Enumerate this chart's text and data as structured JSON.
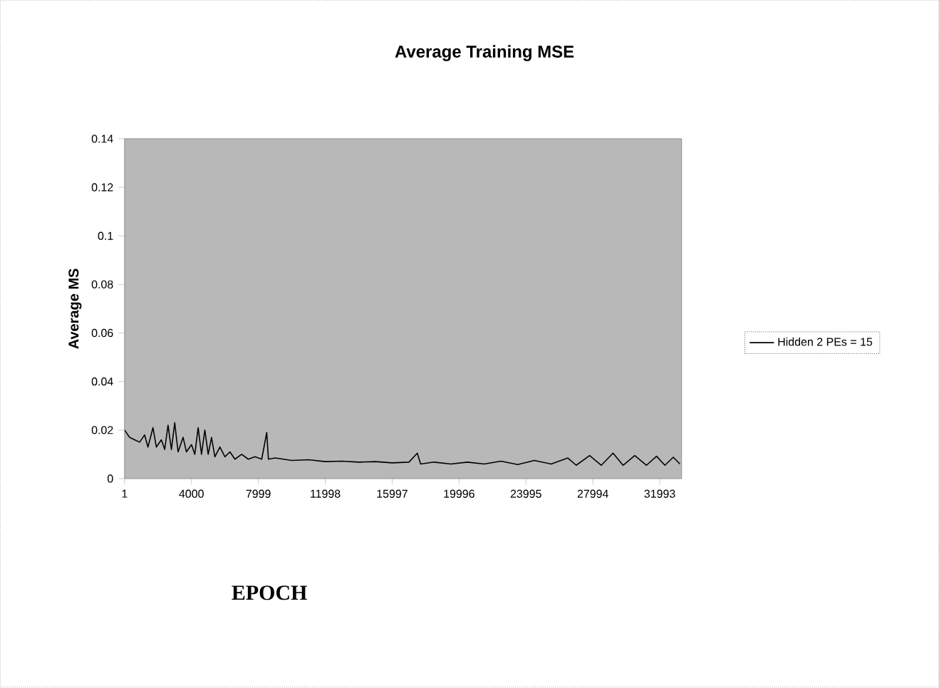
{
  "chart_data": {
    "type": "line",
    "title": "Average Training MSE",
    "xlabel": "EPOCH",
    "ylabel": "Average MS",
    "xlim": [
      1,
      33300
    ],
    "ylim": [
      0,
      0.14
    ],
    "xticks": [
      1,
      4000,
      7999,
      11998,
      15997,
      19996,
      23995,
      27994,
      31993
    ],
    "yticks": [
      0,
      0.02,
      0.04,
      0.06,
      0.08,
      0.1,
      0.12,
      0.14
    ],
    "legend": "right",
    "grid": false,
    "series": [
      {
        "name": "Hidden 2 PEs = 15",
        "color": "#000000",
        "x": [
          1,
          300,
          600,
          900,
          1200,
          1400,
          1700,
          1900,
          2200,
          2400,
          2600,
          2800,
          3000,
          3200,
          3500,
          3700,
          4000,
          4200,
          4400,
          4600,
          4800,
          5000,
          5200,
          5400,
          5700,
          6000,
          6300,
          6600,
          7000,
          7400,
          7800,
          8200,
          8500,
          8600,
          9000,
          10000,
          11000,
          12000,
          13000,
          14000,
          15000,
          16000,
          17000,
          17500,
          17700,
          18500,
          19500,
          20500,
          21500,
          22500,
          23500,
          24500,
          25500,
          26500,
          27000,
          27800,
          28500,
          29200,
          29800,
          30500,
          31200,
          31800,
          32300,
          32800,
          33200
        ],
        "values": [
          0.02,
          0.017,
          0.016,
          0.015,
          0.018,
          0.013,
          0.021,
          0.013,
          0.016,
          0.012,
          0.022,
          0.012,
          0.023,
          0.011,
          0.017,
          0.011,
          0.014,
          0.01,
          0.021,
          0.01,
          0.02,
          0.01,
          0.017,
          0.009,
          0.013,
          0.009,
          0.011,
          0.008,
          0.01,
          0.008,
          0.009,
          0.008,
          0.019,
          0.008,
          0.0085,
          0.0075,
          0.0078,
          0.007,
          0.0072,
          0.0068,
          0.007,
          0.0065,
          0.0068,
          0.0105,
          0.006,
          0.0068,
          0.006,
          0.0068,
          0.006,
          0.0072,
          0.0058,
          0.0075,
          0.006,
          0.0085,
          0.0055,
          0.0095,
          0.0055,
          0.0105,
          0.0055,
          0.0095,
          0.0055,
          0.0092,
          0.0055,
          0.0088,
          0.006
        ]
      }
    ]
  }
}
